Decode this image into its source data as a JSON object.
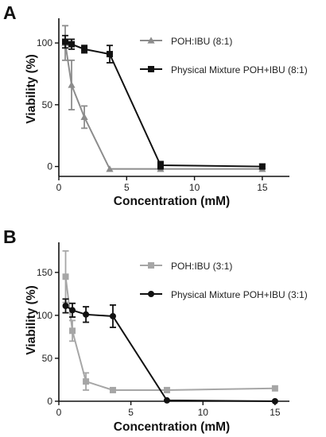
{
  "chart_data": [
    {
      "type": "line",
      "panel_label": "A",
      "xlabel": "Concentration (mM)",
      "ylabel": "Viability (%)",
      "xlim": [
        0,
        17
      ],
      "ylim": [
        -8,
        120
      ],
      "xticks": [
        0,
        5,
        10,
        15
      ],
      "yticks": [
        0,
        50,
        100
      ],
      "legend_position": "top-right",
      "series": [
        {
          "name": "POH:IBU (8:1)",
          "color": "#8c8c8c",
          "marker": "triangle",
          "points": [
            {
              "x": 0.47,
              "y": 100,
              "err": 14
            },
            {
              "x": 0.94,
              "y": 66,
              "err": 20
            },
            {
              "x": 1.88,
              "y": 40,
              "err": 9
            },
            {
              "x": 3.75,
              "y": -2,
              "err": 0
            },
            {
              "x": 7.5,
              "y": -2,
              "err": 0
            },
            {
              "x": 15,
              "y": -2,
              "err": 0
            }
          ]
        },
        {
          "name": "Physical Mixture POH+IBU (8:1)",
          "color": "#111111",
          "marker": "square",
          "points": [
            {
              "x": 0.47,
              "y": 101,
              "err": 5
            },
            {
              "x": 0.94,
              "y": 99,
              "err": 4
            },
            {
              "x": 1.88,
              "y": 95,
              "err": 3
            },
            {
              "x": 3.75,
              "y": 91,
              "err": 7
            },
            {
              "x": 7.5,
              "y": 1,
              "err": 3
            },
            {
              "x": 15,
              "y": 0,
              "err": 2
            }
          ]
        }
      ]
    },
    {
      "type": "line",
      "panel_label": "B",
      "xlabel": "Concentration (mM)",
      "ylabel": "Viability (%)",
      "xlim": [
        0,
        16
      ],
      "ylim": [
        0,
        185
      ],
      "xticks": [
        0,
        5,
        10,
        15
      ],
      "yticks": [
        0,
        50,
        100,
        150
      ],
      "legend_position": "top-right",
      "series": [
        {
          "name": "POH:IBU (3:1)",
          "color": "#a6a6a6",
          "marker": "square",
          "points": [
            {
              "x": 0.47,
              "y": 145,
              "err": 30
            },
            {
              "x": 0.94,
              "y": 82,
              "err": 12
            },
            {
              "x": 1.88,
              "y": 23,
              "err": 10
            },
            {
              "x": 3.75,
              "y": 13,
              "err": 0
            },
            {
              "x": 7.5,
              "y": 13,
              "err": 0
            },
            {
              "x": 15,
              "y": 15,
              "err": 0
            }
          ]
        },
        {
          "name": "Physical Mixture POH+IBU (3:1)",
          "color": "#111111",
          "marker": "circle",
          "points": [
            {
              "x": 0.47,
              "y": 111,
              "err": 8
            },
            {
              "x": 0.94,
              "y": 106,
              "err": 8
            },
            {
              "x": 1.88,
              "y": 101,
              "err": 9
            },
            {
              "x": 3.75,
              "y": 99,
              "err": 13
            },
            {
              "x": 7.5,
              "y": 1,
              "err": 0
            },
            {
              "x": 15,
              "y": 0,
              "err": 0
            }
          ]
        }
      ]
    }
  ]
}
